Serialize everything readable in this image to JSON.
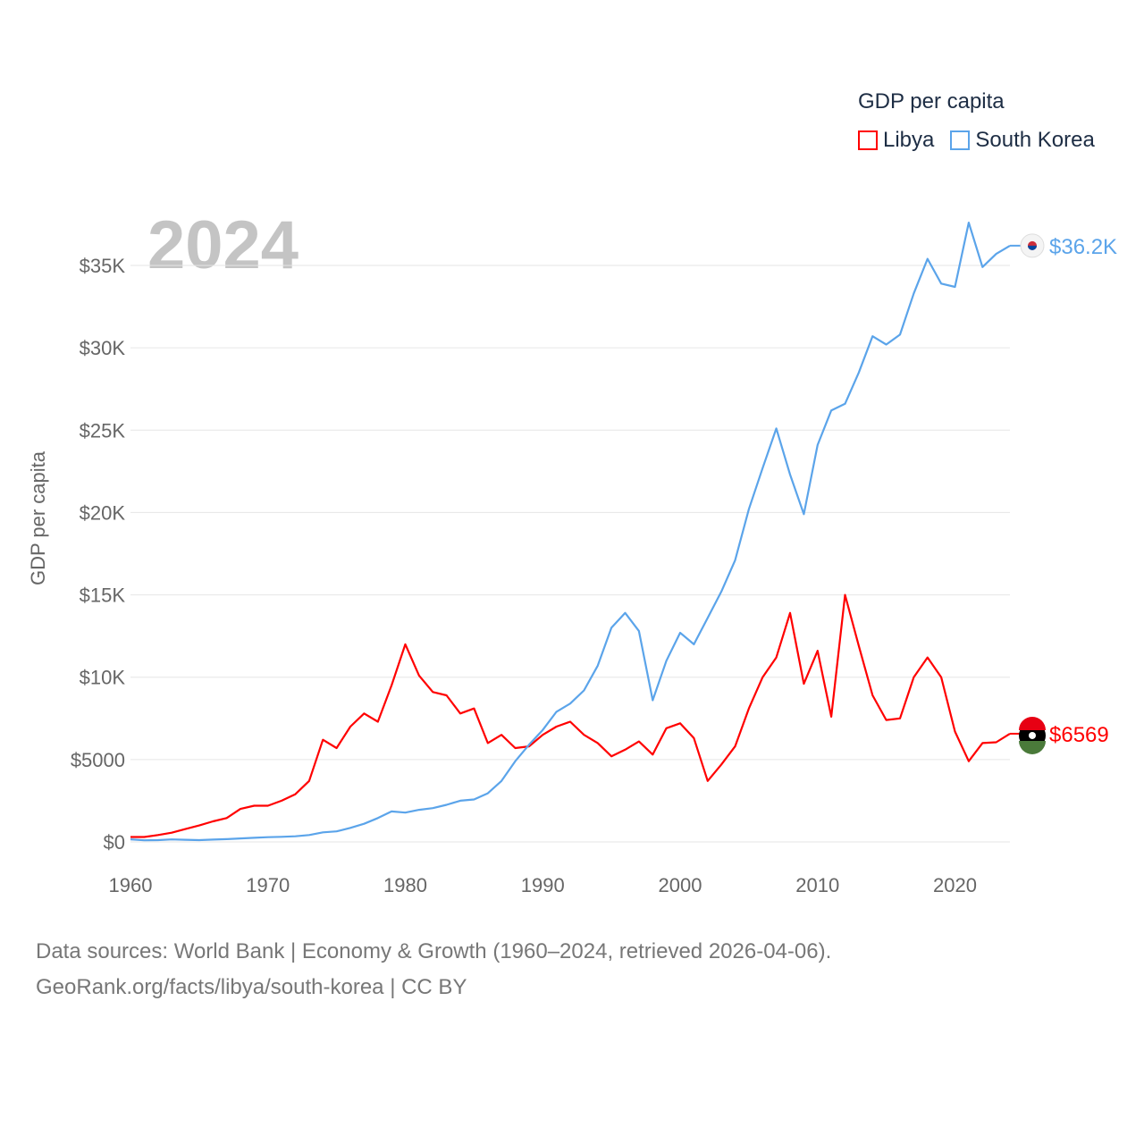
{
  "chart_data": {
    "type": "line",
    "title": "GDP per capita",
    "ylabel": "GDP per capita",
    "xlabel": "",
    "year_label": "2024",
    "xlim": [
      1960,
      2024
    ],
    "ylim": [
      0,
      35000
    ],
    "x_ticks": [
      "1960",
      "1970",
      "1980",
      "1990",
      "2000",
      "2010",
      "2020"
    ],
    "y_ticks": [
      "$0",
      "$5000",
      "$10K",
      "$15K",
      "$20K",
      "$25K",
      "$30K",
      "$35K"
    ],
    "grid": true,
    "legend_placement": "top-right",
    "x": [
      1960,
      1961,
      1962,
      1963,
      1964,
      1965,
      1966,
      1967,
      1968,
      1969,
      1970,
      1971,
      1972,
      1973,
      1974,
      1975,
      1976,
      1977,
      1978,
      1979,
      1980,
      1981,
      1982,
      1983,
      1984,
      1985,
      1986,
      1987,
      1988,
      1989,
      1990,
      1991,
      1992,
      1993,
      1994,
      1995,
      1996,
      1997,
      1998,
      1999,
      2000,
      2001,
      2002,
      2003,
      2004,
      2005,
      2006,
      2007,
      2008,
      2009,
      2010,
      2011,
      2012,
      2013,
      2014,
      2015,
      2016,
      2017,
      2018,
      2019,
      2020,
      2021,
      2022,
      2023,
      2024
    ],
    "series": [
      {
        "name": "Libya",
        "color": "#ff0000",
        "end_label": "$6569",
        "values": [
          300,
          300,
          420,
          560,
          780,
          1000,
          1250,
          1450,
          2000,
          2200,
          2200,
          2500,
          2900,
          3700,
          6200,
          5700,
          7000,
          7800,
          7300,
          9500,
          12000,
          10100,
          9100,
          8900,
          7800,
          8100,
          6000,
          6500,
          5700,
          5800,
          6500,
          7000,
          7300,
          6500,
          6000,
          5200,
          5600,
          6100,
          5300,
          6900,
          7200,
          6300,
          3700,
          4700,
          5800,
          8100,
          10000,
          11200,
          13900,
          9600,
          11600,
          7600,
          15000,
          11900,
          8900,
          7400,
          7500,
          10000,
          11200,
          10000,
          6700,
          4900,
          6000,
          6050,
          6569
        ]
      },
      {
        "name": "South Korea",
        "color": "#5ba4ea",
        "end_label": "$36.2K",
        "values": [
          160,
          100,
          110,
          150,
          130,
          110,
          140,
          170,
          210,
          250,
          290,
          310,
          340,
          420,
          580,
          640,
          850,
          1100,
          1450,
          1850,
          1780,
          1950,
          2050,
          2250,
          2500,
          2580,
          2950,
          3700,
          4900,
          5900,
          6800,
          7900,
          8400,
          9200,
          10700,
          13000,
          13900,
          12800,
          8600,
          11000,
          12700,
          12000,
          13600,
          15200,
          17100,
          20200,
          22700,
          25100,
          22300,
          19900,
          24100,
          26200,
          26600,
          28500,
          30700,
          30200,
          30800,
          33300,
          35400,
          33900,
          33700,
          37600,
          34900,
          35700,
          36200
        ]
      }
    ]
  },
  "legend": {
    "title": "GDP per capita",
    "items": [
      "Libya",
      "South Korea"
    ]
  },
  "source": {
    "line1": "Data sources: World Bank | Economy & Growth (1960–2024, retrieved 2026-04-06).",
    "line2": "GeoRank.org/facts/libya/south-korea | CC BY"
  }
}
